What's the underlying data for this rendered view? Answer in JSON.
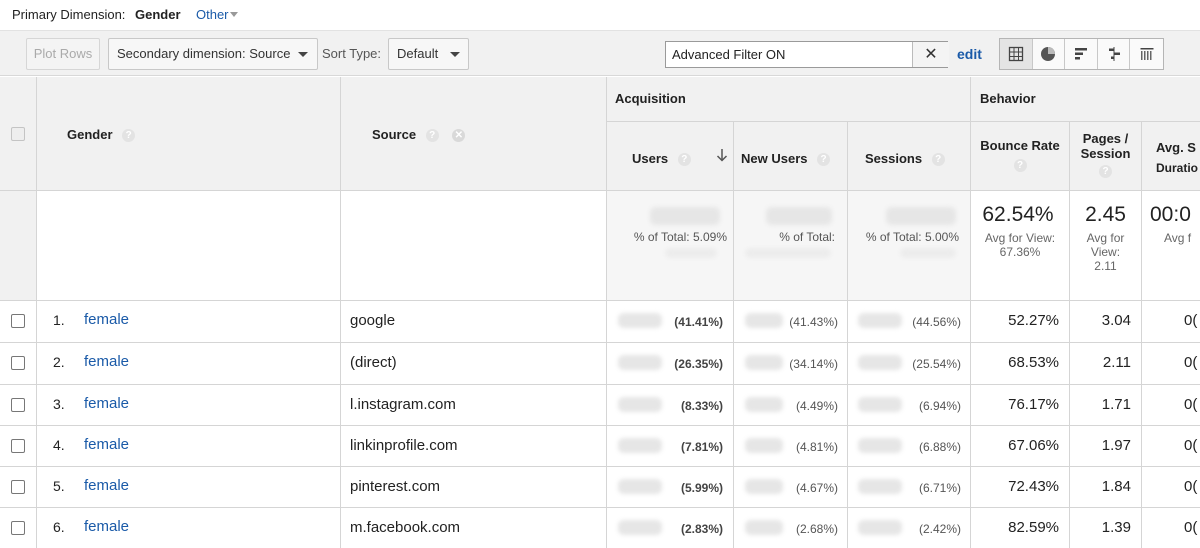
{
  "primary": {
    "label": "Primary Dimension:",
    "active": "Gender",
    "other": "Other"
  },
  "toolbar": {
    "plot_rows": "Plot Rows",
    "secondary_dimension": "Secondary dimension: Source",
    "sort_type_label": "Sort Type:",
    "sort_type_value": "Default",
    "filter_value": "Advanced Filter ON",
    "clear_icon": "close-icon",
    "edit": "edit",
    "views": [
      "table-view-icon",
      "pie-view-icon",
      "performance-view-icon",
      "comparison-view-icon",
      "pivot-view-icon"
    ]
  },
  "table": {
    "headers": {
      "gender": "Gender",
      "source": "Source",
      "acquisition": "Acquisition",
      "behavior": "Behavior",
      "users": "Users",
      "new_users": "New Users",
      "sessions": "Sessions",
      "bounce_rate": "Bounce Rate",
      "pages_session_1": "Pages /",
      "pages_session_2": "Session",
      "avg_1": "Avg. S",
      "avg_2": "Duratio"
    },
    "help_icon": "?",
    "totals": {
      "users_pct": "% of Total: 5.09%",
      "new_users_pct": "% of Total:",
      "sessions_pct": "% of Total: 5.00%",
      "bounce_rate": "62.54%",
      "bounce_rate_avg_1": "Avg for View:",
      "bounce_rate_avg_2": "67.36%",
      "pages": "2.45",
      "pages_avg_1": "Avg for",
      "pages_avg_2": "View:",
      "pages_avg_3": "2.11",
      "duration": "00:0",
      "duration_avg": "Avg f"
    },
    "rows": [
      {
        "n": "1.",
        "gender": "female",
        "source": "google",
        "users_pct": "(41.41%)",
        "new_users_pct": "(41.43%)",
        "sessions_pct": "(44.56%)",
        "bounce": "52.27%",
        "pages": "3.04",
        "dur": "0("
      },
      {
        "n": "2.",
        "gender": "female",
        "source": "(direct)",
        "users_pct": "(26.35%)",
        "new_users_pct": "(34.14%)",
        "sessions_pct": "(25.54%)",
        "bounce": "68.53%",
        "pages": "2.11",
        "dur": "0("
      },
      {
        "n": "3.",
        "gender": "female",
        "source": "l.instagram.com",
        "users_pct": "(8.33%)",
        "new_users_pct": "(4.49%)",
        "sessions_pct": "(6.94%)",
        "bounce": "76.17%",
        "pages": "1.71",
        "dur": "0("
      },
      {
        "n": "4.",
        "gender": "female",
        "source": "linkinprofile.com",
        "users_pct": "(7.81%)",
        "new_users_pct": "(4.81%)",
        "sessions_pct": "(6.88%)",
        "bounce": "67.06%",
        "pages": "1.97",
        "dur": "0("
      },
      {
        "n": "5.",
        "gender": "female",
        "source": "pinterest.com",
        "users_pct": "(5.99%)",
        "new_users_pct": "(4.67%)",
        "sessions_pct": "(6.71%)",
        "bounce": "72.43%",
        "pages": "1.84",
        "dur": "0("
      },
      {
        "n": "6.",
        "gender": "female",
        "source": "m.facebook.com",
        "users_pct": "(2.83%)",
        "new_users_pct": "(2.68%)",
        "sessions_pct": "(2.42%)",
        "bounce": "82.59%",
        "pages": "1.39",
        "dur": "0("
      }
    ]
  }
}
